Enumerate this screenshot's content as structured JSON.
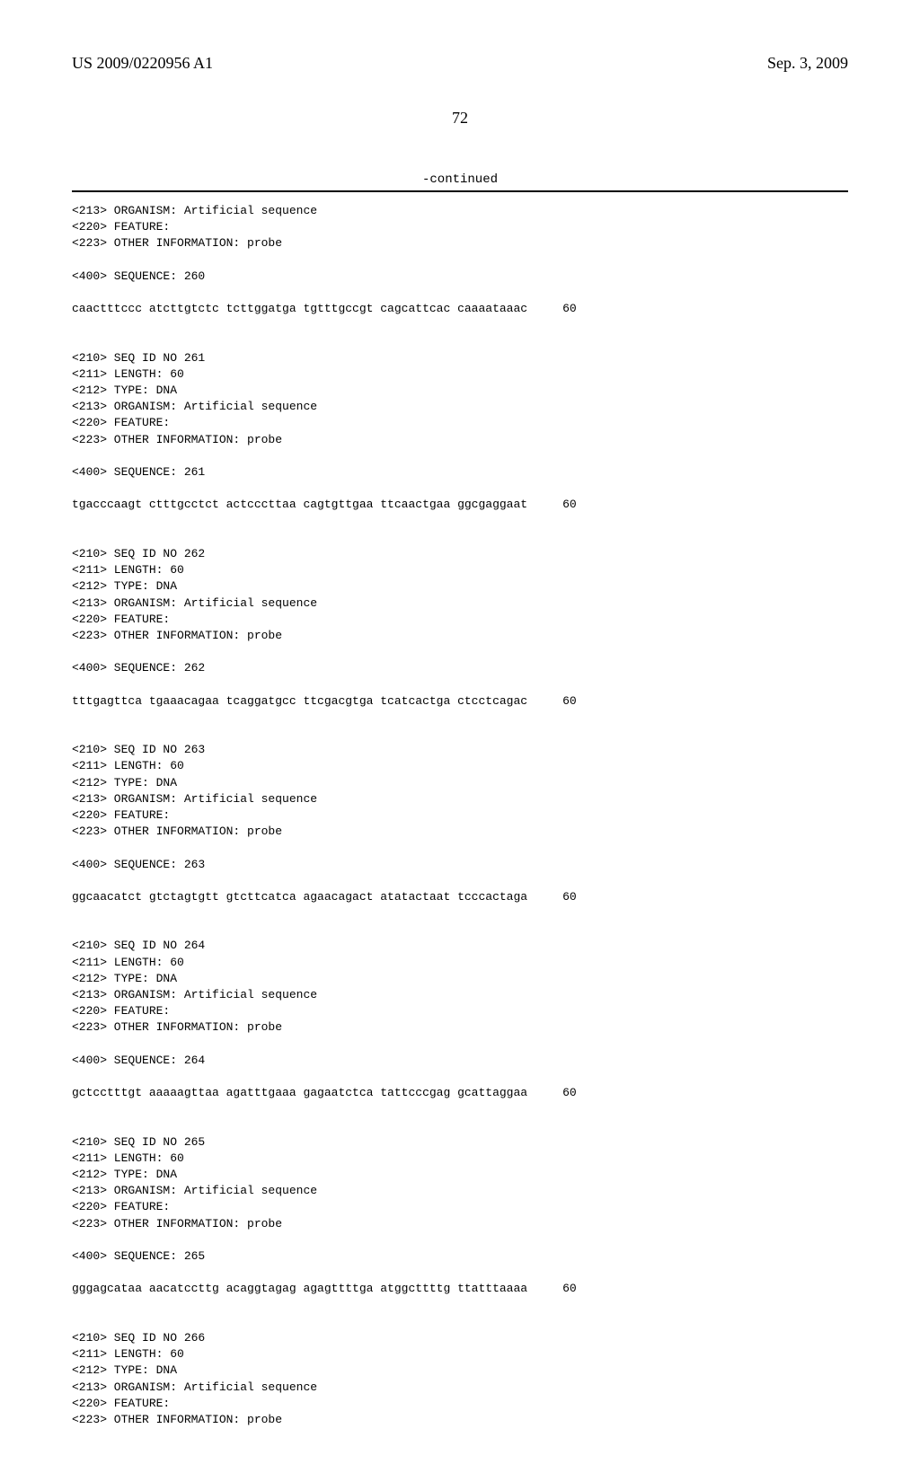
{
  "header": {
    "left": "US 2009/0220956 A1",
    "right": "Sep. 3, 2009"
  },
  "page_number": "72",
  "continued": "-continued",
  "block0": "<213> ORGANISM: Artificial sequence\n<220> FEATURE:\n<223> OTHER INFORMATION: probe\n\n<400> SEQUENCE: 260\n\ncaactttccc atcttgtctc tcttggatga tgtttgccgt cagcattcac caaaataaac     60\n\n\n<210> SEQ ID NO 261\n<211> LENGTH: 60\n<212> TYPE: DNA\n<213> ORGANISM: Artificial sequence\n<220> FEATURE:\n<223> OTHER INFORMATION: probe\n\n<400> SEQUENCE: 261\n\ntgacccaagt ctttgcctct actcccttaa cagtgttgaa ttcaactgaa ggcgaggaat     60\n\n\n<210> SEQ ID NO 262\n<211> LENGTH: 60\n<212> TYPE: DNA\n<213> ORGANISM: Artificial sequence\n<220> FEATURE:\n<223> OTHER INFORMATION: probe\n\n<400> SEQUENCE: 262\n\ntttgagttca tgaaacagaa tcaggatgcc ttcgacgtga tcatcactga ctcctcagac     60\n\n\n<210> SEQ ID NO 263\n<211> LENGTH: 60\n<212> TYPE: DNA\n<213> ORGANISM: Artificial sequence\n<220> FEATURE:\n<223> OTHER INFORMATION: probe\n\n<400> SEQUENCE: 263\n\nggcaacatct gtctagtgtt gtcttcatca agaacagact atatactaat tcccactaga     60\n\n\n<210> SEQ ID NO 264\n<211> LENGTH: 60\n<212> TYPE: DNA\n<213> ORGANISM: Artificial sequence\n<220> FEATURE:\n<223> OTHER INFORMATION: probe\n\n<400> SEQUENCE: 264\n\ngctcctttgt aaaaagttaa agatttgaaa gagaatctca tattcccgag gcattaggaa     60\n\n\n<210> SEQ ID NO 265\n<211> LENGTH: 60\n<212> TYPE: DNA\n<213> ORGANISM: Artificial sequence\n<220> FEATURE:\n<223> OTHER INFORMATION: probe\n\n<400> SEQUENCE: 265\n\ngggagcataa aacatccttg acaggtagag agagttttga atggcttttg ttatttaaaa     60\n\n\n<210> SEQ ID NO 266\n<211> LENGTH: 60\n<212> TYPE: DNA\n<213> ORGANISM: Artificial sequence\n<220> FEATURE:\n<223> OTHER INFORMATION: probe"
}
